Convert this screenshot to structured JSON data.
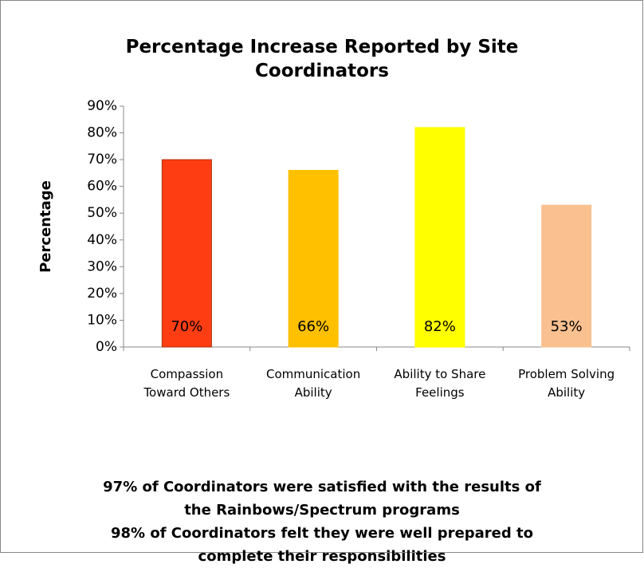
{
  "chart_data": {
    "type": "bar",
    "title": "Percentage Increase Reported by Site Coordinators",
    "ylabel": "Percentage",
    "categories": [
      "Compassion\nToward Others",
      "Communication\nAbility",
      "Ability to Share\nFeelings",
      "Problem Solving\nAbility"
    ],
    "values": [
      70,
      66,
      82,
      53
    ],
    "value_labels": [
      "70%",
      "66%",
      "82%",
      "53%"
    ],
    "colors": [
      "#ff3d12",
      "#ffc000",
      "#ffff00",
      "#fac090"
    ],
    "ylim": [
      0,
      90
    ],
    "yticks": [
      {
        "value": 0,
        "label": "0%"
      },
      {
        "value": 10,
        "label": "10%"
      },
      {
        "value": 20,
        "label": "20%"
      },
      {
        "value": 30,
        "label": "30%"
      },
      {
        "value": 40,
        "label": "40%"
      },
      {
        "value": 50,
        "label": "50%"
      },
      {
        "value": 60,
        "label": "60%"
      },
      {
        "value": 70,
        "label": "70%"
      },
      {
        "value": 80,
        "label": "80%"
      },
      {
        "value": 90,
        "label": "90%"
      }
    ],
    "grid": false,
    "annotations": [
      "97% of Coordinators were satisfied with the results of the Rainbows/Spectrum programs",
      "98% of Coordinators felt they were well prepared to complete their responsibilities"
    ]
  }
}
